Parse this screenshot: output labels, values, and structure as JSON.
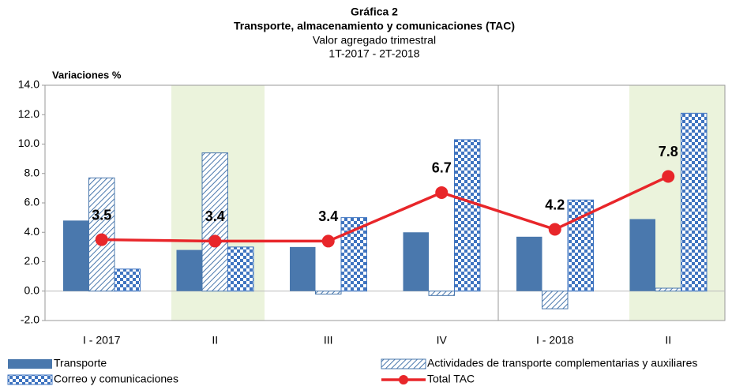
{
  "chart_data": {
    "type": "bar",
    "title": "Gráfica 2",
    "subtitle": "Transporte, almacenamiento y comunicaciones (TAC)",
    "subtitle2": "Valor agregado trimestral",
    "subtitle3": "1T-2017 - 2T-2018",
    "y_label": "Variaciones %",
    "categories": [
      "I - 2017",
      "II",
      "III",
      "IV",
      "I - 2018",
      "II"
    ],
    "ylim": [
      -2,
      14
    ],
    "yticks": [
      {
        "value": -2,
        "label": "-2.0"
      },
      {
        "value": 0,
        "label": "0.0"
      },
      {
        "value": 2,
        "label": "2.0"
      },
      {
        "value": 4,
        "label": "4.0"
      },
      {
        "value": 6,
        "label": "6.0"
      },
      {
        "value": 8,
        "label": "8.0"
      },
      {
        "value": 10,
        "label": "10.0"
      },
      {
        "value": 12,
        "label": "12.0"
      },
      {
        "value": 14,
        "label": "14.0"
      }
    ],
    "series": [
      {
        "name": "Transporte",
        "type": "bar",
        "fill": "solid",
        "color": "#4a78ad",
        "values": [
          4.8,
          2.8,
          3.0,
          4.0,
          3.7,
          4.9
        ]
      },
      {
        "name": "Actividades de transporte complementarias y auxiliares",
        "type": "bar",
        "fill": "hatch",
        "color": "#4a78ad",
        "values": [
          7.7,
          9.4,
          -0.2,
          -0.3,
          -1.2,
          0.2
        ]
      },
      {
        "name": "Correo y comunicaciones",
        "type": "bar",
        "fill": "checker",
        "color": "#3f74c0",
        "values": [
          1.5,
          3.0,
          5.0,
          10.3,
          6.2,
          12.1
        ]
      },
      {
        "name": "Total TAC",
        "type": "line",
        "color": "#e8262a",
        "values": [
          3.5,
          3.4,
          3.4,
          6.7,
          4.2,
          7.8
        ]
      }
    ]
  }
}
